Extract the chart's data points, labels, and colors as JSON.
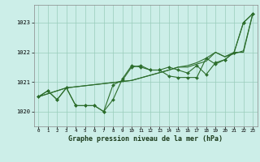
{
  "title": "Graphe pression niveau de la mer (hPa)",
  "background_color": "#cceee8",
  "grid_color": "#99ccbb",
  "line_color": "#2d6e2d",
  "marker_color": "#2d6e2d",
  "xlim": [
    -0.5,
    23.5
  ],
  "ylim": [
    1019.5,
    1023.6
  ],
  "yticks": [
    1020,
    1021,
    1022,
    1023
  ],
  "xticks": [
    0,
    1,
    2,
    3,
    4,
    5,
    6,
    7,
    8,
    9,
    10,
    11,
    12,
    13,
    14,
    15,
    16,
    17,
    18,
    19,
    20,
    21,
    22,
    23
  ],
  "series": [
    {
      "points": [
        [
          0,
          1020.5
        ],
        [
          1,
          1020.7
        ],
        [
          2,
          1020.4
        ],
        [
          3,
          1020.8
        ],
        [
          4,
          1020.2
        ],
        [
          5,
          1020.2
        ],
        [
          6,
          1020.2
        ],
        [
          7,
          1020.0
        ],
        [
          8,
          1020.9
        ],
        [
          9,
          1021.05
        ],
        [
          10,
          1021.5
        ],
        [
          11,
          1021.55
        ],
        [
          12,
          1021.4
        ],
        [
          13,
          1021.4
        ],
        [
          14,
          1021.2
        ],
        [
          15,
          1021.15
        ],
        [
          16,
          1021.15
        ],
        [
          17,
          1021.15
        ],
        [
          18,
          1021.8
        ],
        [
          19,
          1021.6
        ],
        [
          20,
          1021.75
        ],
        [
          21,
          1022.0
        ],
        [
          22,
          1023.0
        ],
        [
          23,
          1023.3
        ]
      ],
      "marker": true
    },
    {
      "points": [
        [
          0,
          1020.5
        ],
        [
          3,
          1020.8
        ],
        [
          10,
          1021.05
        ],
        [
          14,
          1021.4
        ],
        [
          15,
          1021.5
        ],
        [
          16,
          1021.5
        ],
        [
          17,
          1021.6
        ],
        [
          18,
          1021.7
        ],
        [
          19,
          1022.0
        ],
        [
          20,
          1021.85
        ],
        [
          21,
          1021.95
        ],
        [
          22,
          1022.05
        ],
        [
          23,
          1023.3
        ]
      ],
      "marker": false
    },
    {
      "points": [
        [
          0,
          1020.5
        ],
        [
          3,
          1020.8
        ],
        [
          10,
          1021.05
        ],
        [
          14,
          1021.4
        ],
        [
          15,
          1021.5
        ],
        [
          16,
          1021.55
        ],
        [
          17,
          1021.65
        ],
        [
          18,
          1021.8
        ],
        [
          19,
          1022.0
        ],
        [
          20,
          1021.85
        ],
        [
          21,
          1022.0
        ],
        [
          22,
          1022.0
        ],
        [
          23,
          1023.3
        ]
      ],
      "marker": false
    },
    {
      "points": [
        [
          0,
          1020.5
        ],
        [
          1,
          1020.7
        ],
        [
          2,
          1020.4
        ],
        [
          3,
          1020.8
        ],
        [
          4,
          1020.2
        ],
        [
          5,
          1020.2
        ],
        [
          6,
          1020.2
        ],
        [
          7,
          1020.0
        ],
        [
          8,
          1020.4
        ],
        [
          9,
          1021.1
        ],
        [
          10,
          1021.55
        ],
        [
          11,
          1021.5
        ],
        [
          12,
          1021.4
        ],
        [
          13,
          1021.4
        ],
        [
          14,
          1021.5
        ],
        [
          15,
          1021.4
        ],
        [
          16,
          1021.3
        ],
        [
          17,
          1021.55
        ],
        [
          18,
          1021.25
        ],
        [
          19,
          1021.65
        ],
        [
          20,
          1021.75
        ],
        [
          21,
          1022.0
        ],
        [
          22,
          1023.0
        ],
        [
          23,
          1023.3
        ]
      ],
      "marker": true
    }
  ]
}
